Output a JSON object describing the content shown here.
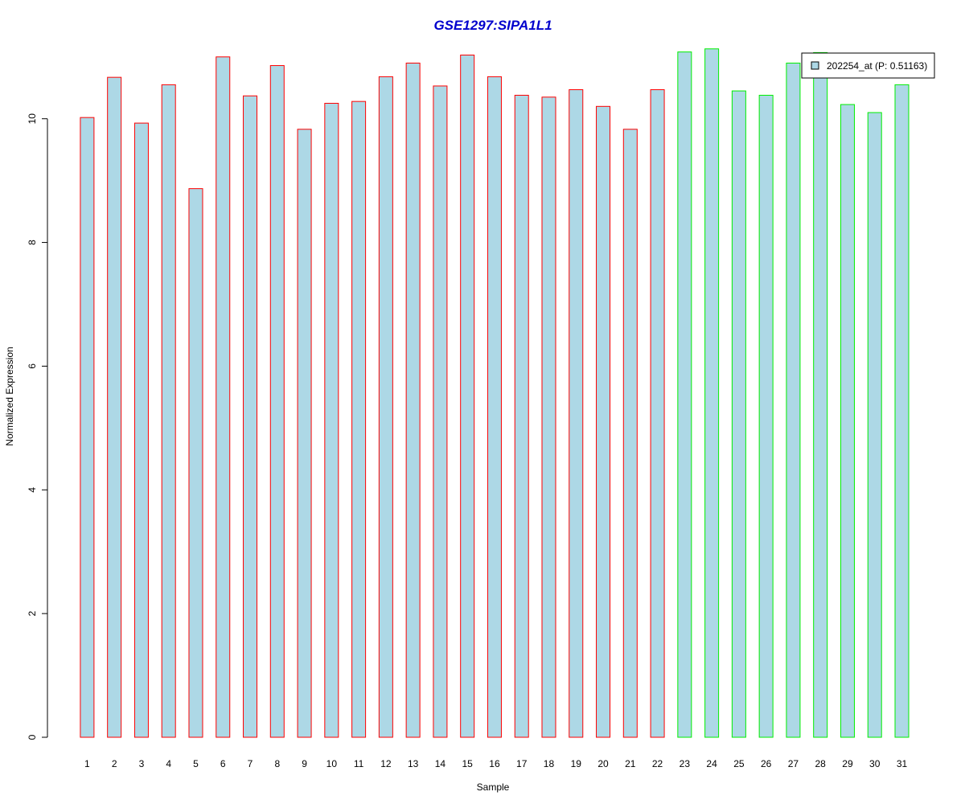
{
  "chart_data": {
    "type": "bar",
    "title": "GSE1297:SIPA1L1",
    "xlabel": "Sample",
    "ylabel": "Normalized Expression",
    "ylim": [
      0,
      11.4
    ],
    "yticks": [
      "0",
      "2",
      "4",
      "6",
      "8",
      "10"
    ],
    "categories": [
      "1",
      "2",
      "3",
      "4",
      "5",
      "6",
      "7",
      "8",
      "9",
      "10",
      "11",
      "12",
      "13",
      "14",
      "15",
      "16",
      "17",
      "18",
      "19",
      "20",
      "21",
      "22",
      "23",
      "24",
      "25",
      "26",
      "27",
      "28",
      "29",
      "30",
      "31"
    ],
    "series": [
      {
        "name": "202254_at (P: 0.51163)",
        "values": [
          10.02,
          10.67,
          9.93,
          10.55,
          8.87,
          11.0,
          10.37,
          10.86,
          9.83,
          10.25,
          10.28,
          10.68,
          10.9,
          10.53,
          11.03,
          10.68,
          10.38,
          10.35,
          10.47,
          10.2,
          9.83,
          10.47,
          11.08,
          11.13,
          10.45,
          10.38,
          10.9,
          11.07,
          10.23,
          10.1,
          10.55
        ]
      }
    ],
    "group_outline_colors": [
      "#ff0000",
      "#ff0000",
      "#ff0000",
      "#ff0000",
      "#ff0000",
      "#ff0000",
      "#ff0000",
      "#ff0000",
      "#ff0000",
      "#ff0000",
      "#ff0000",
      "#ff0000",
      "#ff0000",
      "#ff0000",
      "#ff0000",
      "#ff0000",
      "#ff0000",
      "#ff0000",
      "#ff0000",
      "#ff0000",
      "#ff0000",
      "#ff0000",
      "#00ee00",
      "#00ee00",
      "#00ee00",
      "#00ee00",
      "#00ee00",
      "#00ee00",
      "#00ee00",
      "#00ee00",
      "#00ee00"
    ],
    "bar_fill_color": "#add8e6",
    "title_color": "#0000cd",
    "legend_position": "top-right",
    "grid": false
  }
}
